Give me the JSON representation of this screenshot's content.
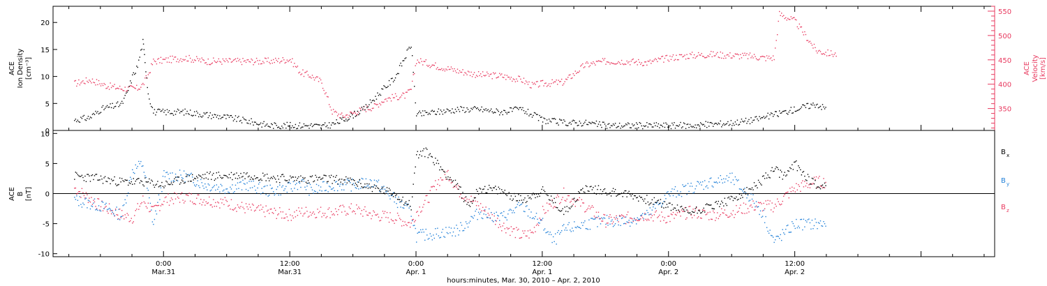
{
  "chart_data": [
    {
      "type": "scatter",
      "panel": "ion-density-velocity",
      "ylabel_lines": [
        "ACE",
        "Ion Density",
        "[cm⁻³]"
      ],
      "yticks": [
        "0",
        "5",
        "10",
        "15",
        "20"
      ],
      "ylim": [
        0,
        23
      ],
      "y2label_lines": [
        "ACE",
        "Velocity",
        "[km/s]"
      ],
      "y2ticks": [
        "350",
        "400",
        "450",
        "500",
        "550"
      ],
      "y2lim": [
        305,
        560
      ],
      "colors": {
        "density": "#000000",
        "velocity": "#e8385e"
      },
      "series": [
        {
          "axis": "left",
          "color": "#000000",
          "points": [
            [
              -8.5,
              2.0
            ],
            [
              -7.0,
              2.5
            ],
            [
              -6.0,
              4.0
            ],
            [
              -5.0,
              4.5
            ],
            [
              -4.0,
              5.0
            ],
            [
              -3.5,
              7.0
            ],
            [
              -3.0,
              10.0
            ],
            [
              -2.5,
              12.0
            ],
            [
              -2.0,
              16.5
            ],
            [
              -1.8,
              13.0
            ],
            [
              -1.5,
              7.0
            ],
            [
              -1.0,
              3.5
            ],
            [
              0,
              3.5
            ],
            [
              2,
              3.5
            ],
            [
              4,
              3.0
            ],
            [
              6,
              2.5
            ],
            [
              8,
              1.8
            ],
            [
              10,
              1.0
            ],
            [
              12,
              1.0
            ],
            [
              13,
              1.0
            ],
            [
              14,
              1.0
            ],
            [
              15,
              0.8
            ],
            [
              16,
              1.2
            ],
            [
              17,
              2.0
            ],
            [
              18,
              3.0
            ],
            [
              19,
              4.0
            ],
            [
              20,
              6.0
            ],
            [
              21,
              8.0
            ],
            [
              22,
              10.0
            ],
            [
              23,
              14.0
            ],
            [
              23.5,
              16.0
            ],
            [
              24,
              3.0
            ],
            [
              26,
              3.5
            ],
            [
              28,
              4.0
            ],
            [
              30,
              4.0
            ],
            [
              32,
              3.5
            ],
            [
              34,
              4.0
            ],
            [
              35,
              3.0
            ],
            [
              36,
              2.0
            ],
            [
              38,
              1.5
            ],
            [
              40,
              1.5
            ],
            [
              42,
              1.0
            ],
            [
              44,
              1.0
            ],
            [
              46,
              1.0
            ],
            [
              48,
              1.0
            ],
            [
              50,
              1.0
            ],
            [
              52,
              1.2
            ],
            [
              54,
              1.5
            ],
            [
              56,
              2.0
            ],
            [
              58,
              3.0
            ],
            [
              59,
              3.5
            ],
            [
              60,
              4.0
            ],
            [
              61,
              4.5
            ],
            [
              62,
              5.0
            ],
            [
              63,
              4.0
            ]
          ]
        },
        {
          "axis": "right",
          "color": "#e8385e",
          "points": [
            [
              -8.5,
              402
            ],
            [
              -7.0,
              410
            ],
            [
              -5.5,
              398
            ],
            [
              -4.0,
              392
            ],
            [
              -2.5,
              392
            ],
            [
              -2.0,
              400
            ],
            [
              -1.5,
              420
            ],
            [
              -1.0,
              448
            ],
            [
              0,
              450
            ],
            [
              2,
              455
            ],
            [
              4,
              448
            ],
            [
              6,
              448
            ],
            [
              8,
              448
            ],
            [
              10,
              448
            ],
            [
              12,
              452
            ],
            [
              13,
              425
            ],
            [
              14,
              418
            ],
            [
              15,
              405
            ],
            [
              16,
              345
            ],
            [
              17,
              335
            ],
            [
              18,
              342
            ],
            [
              19,
              350
            ],
            [
              20,
              355
            ],
            [
              21,
              370
            ],
            [
              22,
              375
            ],
            [
              23,
              378
            ],
            [
              23.5,
              390
            ],
            [
              24,
              450
            ],
            [
              26,
              438
            ],
            [
              28,
              428
            ],
            [
              30,
              420
            ],
            [
              32,
              418
            ],
            [
              34,
              410
            ],
            [
              35,
              398
            ],
            [
              36,
              402
            ],
            [
              38,
              405
            ],
            [
              40,
              440
            ],
            [
              42,
              448
            ],
            [
              44,
              448
            ],
            [
              46,
              445
            ],
            [
              48,
              455
            ],
            [
              50,
              460
            ],
            [
              52,
              462
            ],
            [
              54,
              460
            ],
            [
              56,
              458
            ],
            [
              57,
              455
            ],
            [
              58,
              455
            ],
            [
              58.5,
              545
            ],
            [
              60,
              530
            ],
            [
              61,
              500
            ],
            [
              62,
              470
            ],
            [
              63,
              465
            ],
            [
              64,
              462
            ]
          ]
        }
      ]
    },
    {
      "type": "scatter",
      "panel": "magnetic-field",
      "ylabel_lines": [
        "ACE",
        "B",
        "[nT]"
      ],
      "yticks": [
        "-10",
        "-5",
        "0",
        "5",
        "10"
      ],
      "ylim": [
        -10.5,
        10.5
      ],
      "legend": [
        {
          "label": "B",
          "sub": "x",
          "color": "#000000"
        },
        {
          "label": "B",
          "sub": "y",
          "color": "#1e7fd8"
        },
        {
          "label": "B",
          "sub": "z",
          "color": "#e8385e"
        }
      ],
      "series": [
        {
          "color": "#000000",
          "points": [
            [
              -8.5,
              3.0
            ],
            [
              -6,
              2.5
            ],
            [
              -4,
              2.0
            ],
            [
              -2,
              2.0
            ],
            [
              0,
              1.5
            ],
            [
              2,
              2.5
            ],
            [
              4,
              3.0
            ],
            [
              6,
              3.0
            ],
            [
              8,
              3.2
            ],
            [
              10,
              2.8
            ],
            [
              12,
              2.5
            ],
            [
              14,
              2.5
            ],
            [
              16,
              2.5
            ],
            [
              18,
              2.0
            ],
            [
              20,
              1.0
            ],
            [
              22,
              0.0
            ],
            [
              23.5,
              -2.0
            ],
            [
              24,
              6.5
            ],
            [
              25,
              7.0
            ],
            [
              26,
              5.0
            ],
            [
              27,
              3.0
            ],
            [
              28,
              1.0
            ],
            [
              29,
              -2.0
            ],
            [
              30,
              1.0
            ],
            [
              32,
              0.5
            ],
            [
              34,
              -1.0
            ],
            [
              36,
              0.5
            ],
            [
              38,
              -3.0
            ],
            [
              40,
              1.0
            ],
            [
              42,
              0.5
            ],
            [
              44,
              0.0
            ],
            [
              46,
              -1.0
            ],
            [
              48,
              -2.0
            ],
            [
              50,
              -3.0
            ],
            [
              52,
              -2.0
            ],
            [
              54,
              -1.0
            ],
            [
              56,
              1.0
            ],
            [
              58,
              4.0
            ],
            [
              59,
              3.0
            ],
            [
              60,
              5.0
            ],
            [
              61,
              3.0
            ],
            [
              62,
              1.5
            ],
            [
              63,
              1.5
            ]
          ]
        },
        {
          "color": "#1e7fd8",
          "points": [
            [
              -8.5,
              -1.0
            ],
            [
              -6,
              -2.0
            ],
            [
              -4,
              -3.5
            ],
            [
              -3,
              4.0
            ],
            [
              -2,
              5.0
            ],
            [
              -1,
              -5.0
            ],
            [
              0,
              3.0
            ],
            [
              2,
              3.0
            ],
            [
              4,
              1.5
            ],
            [
              6,
              1.0
            ],
            [
              8,
              1.5
            ],
            [
              10,
              0.5
            ],
            [
              12,
              1.0
            ],
            [
              13,
              2.0
            ],
            [
              14,
              0.5
            ],
            [
              16,
              1.5
            ],
            [
              18,
              1.5
            ],
            [
              20,
              2.0
            ],
            [
              22,
              -1.0
            ],
            [
              23.5,
              -3.0
            ],
            [
              24,
              -7.0
            ],
            [
              26,
              -6.5
            ],
            [
              28,
              -6.0
            ],
            [
              30,
              -3.0
            ],
            [
              32,
              -4.0
            ],
            [
              34,
              -2.0
            ],
            [
              36,
              -5.0
            ],
            [
              37,
              -8.0
            ],
            [
              38,
              -6.0
            ],
            [
              40,
              -5.0
            ],
            [
              42,
              -4.5
            ],
            [
              44,
              -4.5
            ],
            [
              46,
              -3.5
            ],
            [
              48,
              0.0
            ],
            [
              50,
              1.0
            ],
            [
              52,
              2.0
            ],
            [
              54,
              2.5
            ],
            [
              56,
              -1.0
            ],
            [
              57,
              -3.5
            ],
            [
              58,
              -8.0
            ],
            [
              60,
              -5.0
            ],
            [
              62,
              -5.0
            ],
            [
              63,
              -5.0
            ]
          ]
        },
        {
          "color": "#e8385e",
          "points": [
            [
              -8.5,
              1.0
            ],
            [
              -6,
              -2.0
            ],
            [
              -4,
              -3.5
            ],
            [
              -3,
              -4.0
            ],
            [
              -2,
              -1.0
            ],
            [
              -1,
              -3.0
            ],
            [
              0,
              -1.0
            ],
            [
              2,
              -0.5
            ],
            [
              4,
              -1.0
            ],
            [
              6,
              -1.5
            ],
            [
              8,
              -2.5
            ],
            [
              10,
              -3.0
            ],
            [
              12,
              -3.5
            ],
            [
              13,
              -3.0
            ],
            [
              14,
              -3.0
            ],
            [
              16,
              -3.0
            ],
            [
              18,
              -2.5
            ],
            [
              20,
              -3.5
            ],
            [
              22,
              -4.0
            ],
            [
              23.5,
              -5.0
            ],
            [
              24,
              -3.0
            ],
            [
              25,
              -1.0
            ],
            [
              26,
              2.0
            ],
            [
              27,
              3.5
            ],
            [
              28,
              0.5
            ],
            [
              30,
              -2.0
            ],
            [
              32,
              -5.0
            ],
            [
              34,
              -7.0
            ],
            [
              35,
              -6.5
            ],
            [
              36,
              -3.0
            ],
            [
              37,
              -1.5
            ],
            [
              38,
              0.0
            ],
            [
              40,
              -2.0
            ],
            [
              42,
              -4.5
            ],
            [
              44,
              -4.0
            ],
            [
              46,
              -3.5
            ],
            [
              48,
              -4.0
            ],
            [
              50,
              -3.0
            ],
            [
              52,
              -3.5
            ],
            [
              54,
              -3.0
            ],
            [
              56,
              -2.0
            ],
            [
              58,
              -2.0
            ],
            [
              60,
              1.0
            ],
            [
              62,
              2.0
            ],
            [
              63,
              2.0
            ]
          ]
        }
      ]
    }
  ],
  "x_axis": {
    "ticks": [
      {
        "time": "0:00",
        "date": "Mar.31"
      },
      {
        "time": "12:00",
        "date": "Mar.31"
      },
      {
        "time": "0:00",
        "date": "Apr. 1"
      },
      {
        "time": "12:00",
        "date": "Apr. 1"
      },
      {
        "time": "0:00",
        "date": "Apr. 2"
      },
      {
        "time": "12:00",
        "date": "Apr. 2"
      }
    ],
    "tick_hours": [
      0,
      12,
      24,
      36,
      48,
      60
    ],
    "range_hours": [
      -10.5,
      79
    ],
    "title": "hours:minutes, Mar. 30, 2010 – Apr.  2, 2010"
  }
}
